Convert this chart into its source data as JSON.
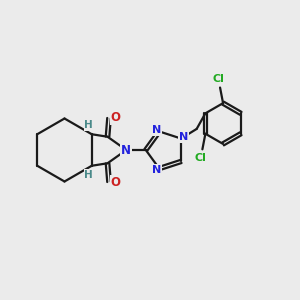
{
  "background_color": "#ebebeb",
  "bond_color": "#1a1a1a",
  "N_color": "#2222dd",
  "O_color": "#cc2222",
  "H_color": "#4a8a8a",
  "Cl_color": "#22aa22",
  "figsize": [
    3.0,
    3.0
  ],
  "dpi": 100,
  "xlim": [
    0,
    10
  ],
  "ylim": [
    0,
    10
  ]
}
